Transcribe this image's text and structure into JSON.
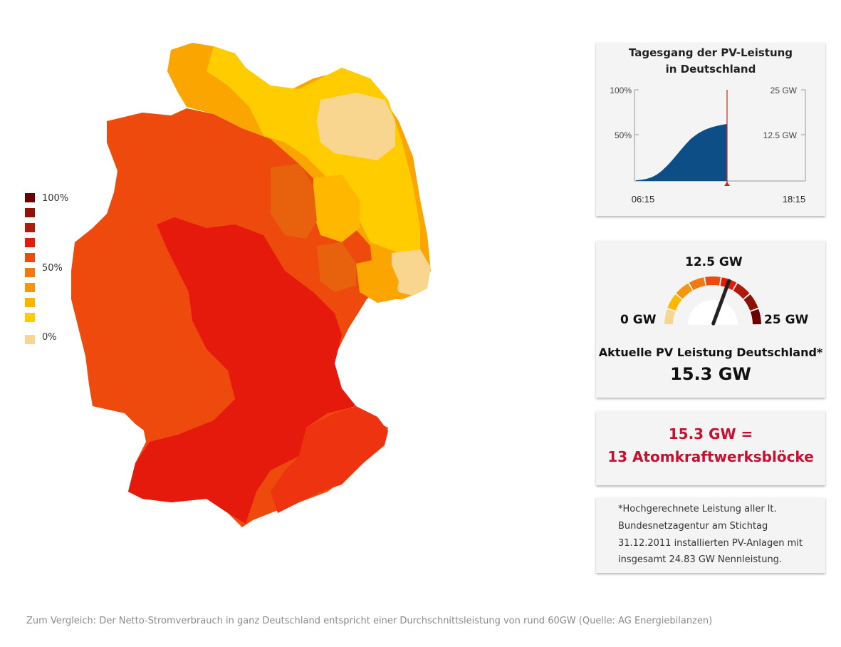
{
  "map": {
    "colors": {
      "pale": "#f8d68f",
      "yellow": "#ffcc00",
      "yellow_orange": "#ffb700",
      "amber": "#fba500",
      "orange": "#f07a10",
      "orange_dark": "#e8620d",
      "red_orange": "#ef4a0e",
      "red_mid": "#ee3310",
      "red": "#e51a0c"
    }
  },
  "legend": {
    "labels": {
      "top": "100%",
      "mid": "50%",
      "bottom": "0%"
    },
    "swatches": [
      "#6b0000",
      "#8e1205",
      "#b01b0c",
      "#e51a0c",
      "#ef4a0e",
      "#f07a10",
      "#f7950b",
      "#fbb400",
      "#ffcc00",
      "#f8d68f"
    ]
  },
  "daily_chart": {
    "title_line1": "Tagesgang der PV-Leistung",
    "title_line2": "in Deutschland",
    "y_left_labels": [
      "100%",
      "50%"
    ],
    "y_right_labels": [
      "25 GW",
      "12.5 GW"
    ],
    "x_labels": {
      "start": "06:15",
      "end": "18:15"
    },
    "current_output_gw": 15.3,
    "fill_color": "#0e4e87",
    "marker_color": "#d62020"
  },
  "gauge": {
    "min_label": "0 GW",
    "mid_label": "12.5 GW",
    "max_label": "25 GW",
    "value_fraction": 0.612,
    "caption": "Aktuelle PV Leistung Deutschland*",
    "value": "15.3 GW",
    "segment_colors": [
      "#f8d68f",
      "#ffb700",
      "#f7950b",
      "#f07a10",
      "#ef4a0e",
      "#e51a0c",
      "#b01b0c",
      "#8e1205",
      "#6b0000"
    ]
  },
  "equivalent": {
    "line1": "15.3 GW =",
    "line2": "13 Atomkraftwerksblöcke",
    "color": "#c8102e"
  },
  "footnote": {
    "lines": [
      "*Hochgerechnete Leistung aller lt.",
      "Bundesnetzagentur am Stichtag",
      "31.12.2011 installierten PV-Anlagen mit",
      "insgesamt 24.83 GW Nennleistung."
    ]
  },
  "footer": {
    "text": "Zum Vergleich: Der Netto-Stromverbrauch in ganz Deutschland entspricht einer Durchschnittsleistung von rund 60GW (Quelle: AG Energiebilanzen)"
  }
}
